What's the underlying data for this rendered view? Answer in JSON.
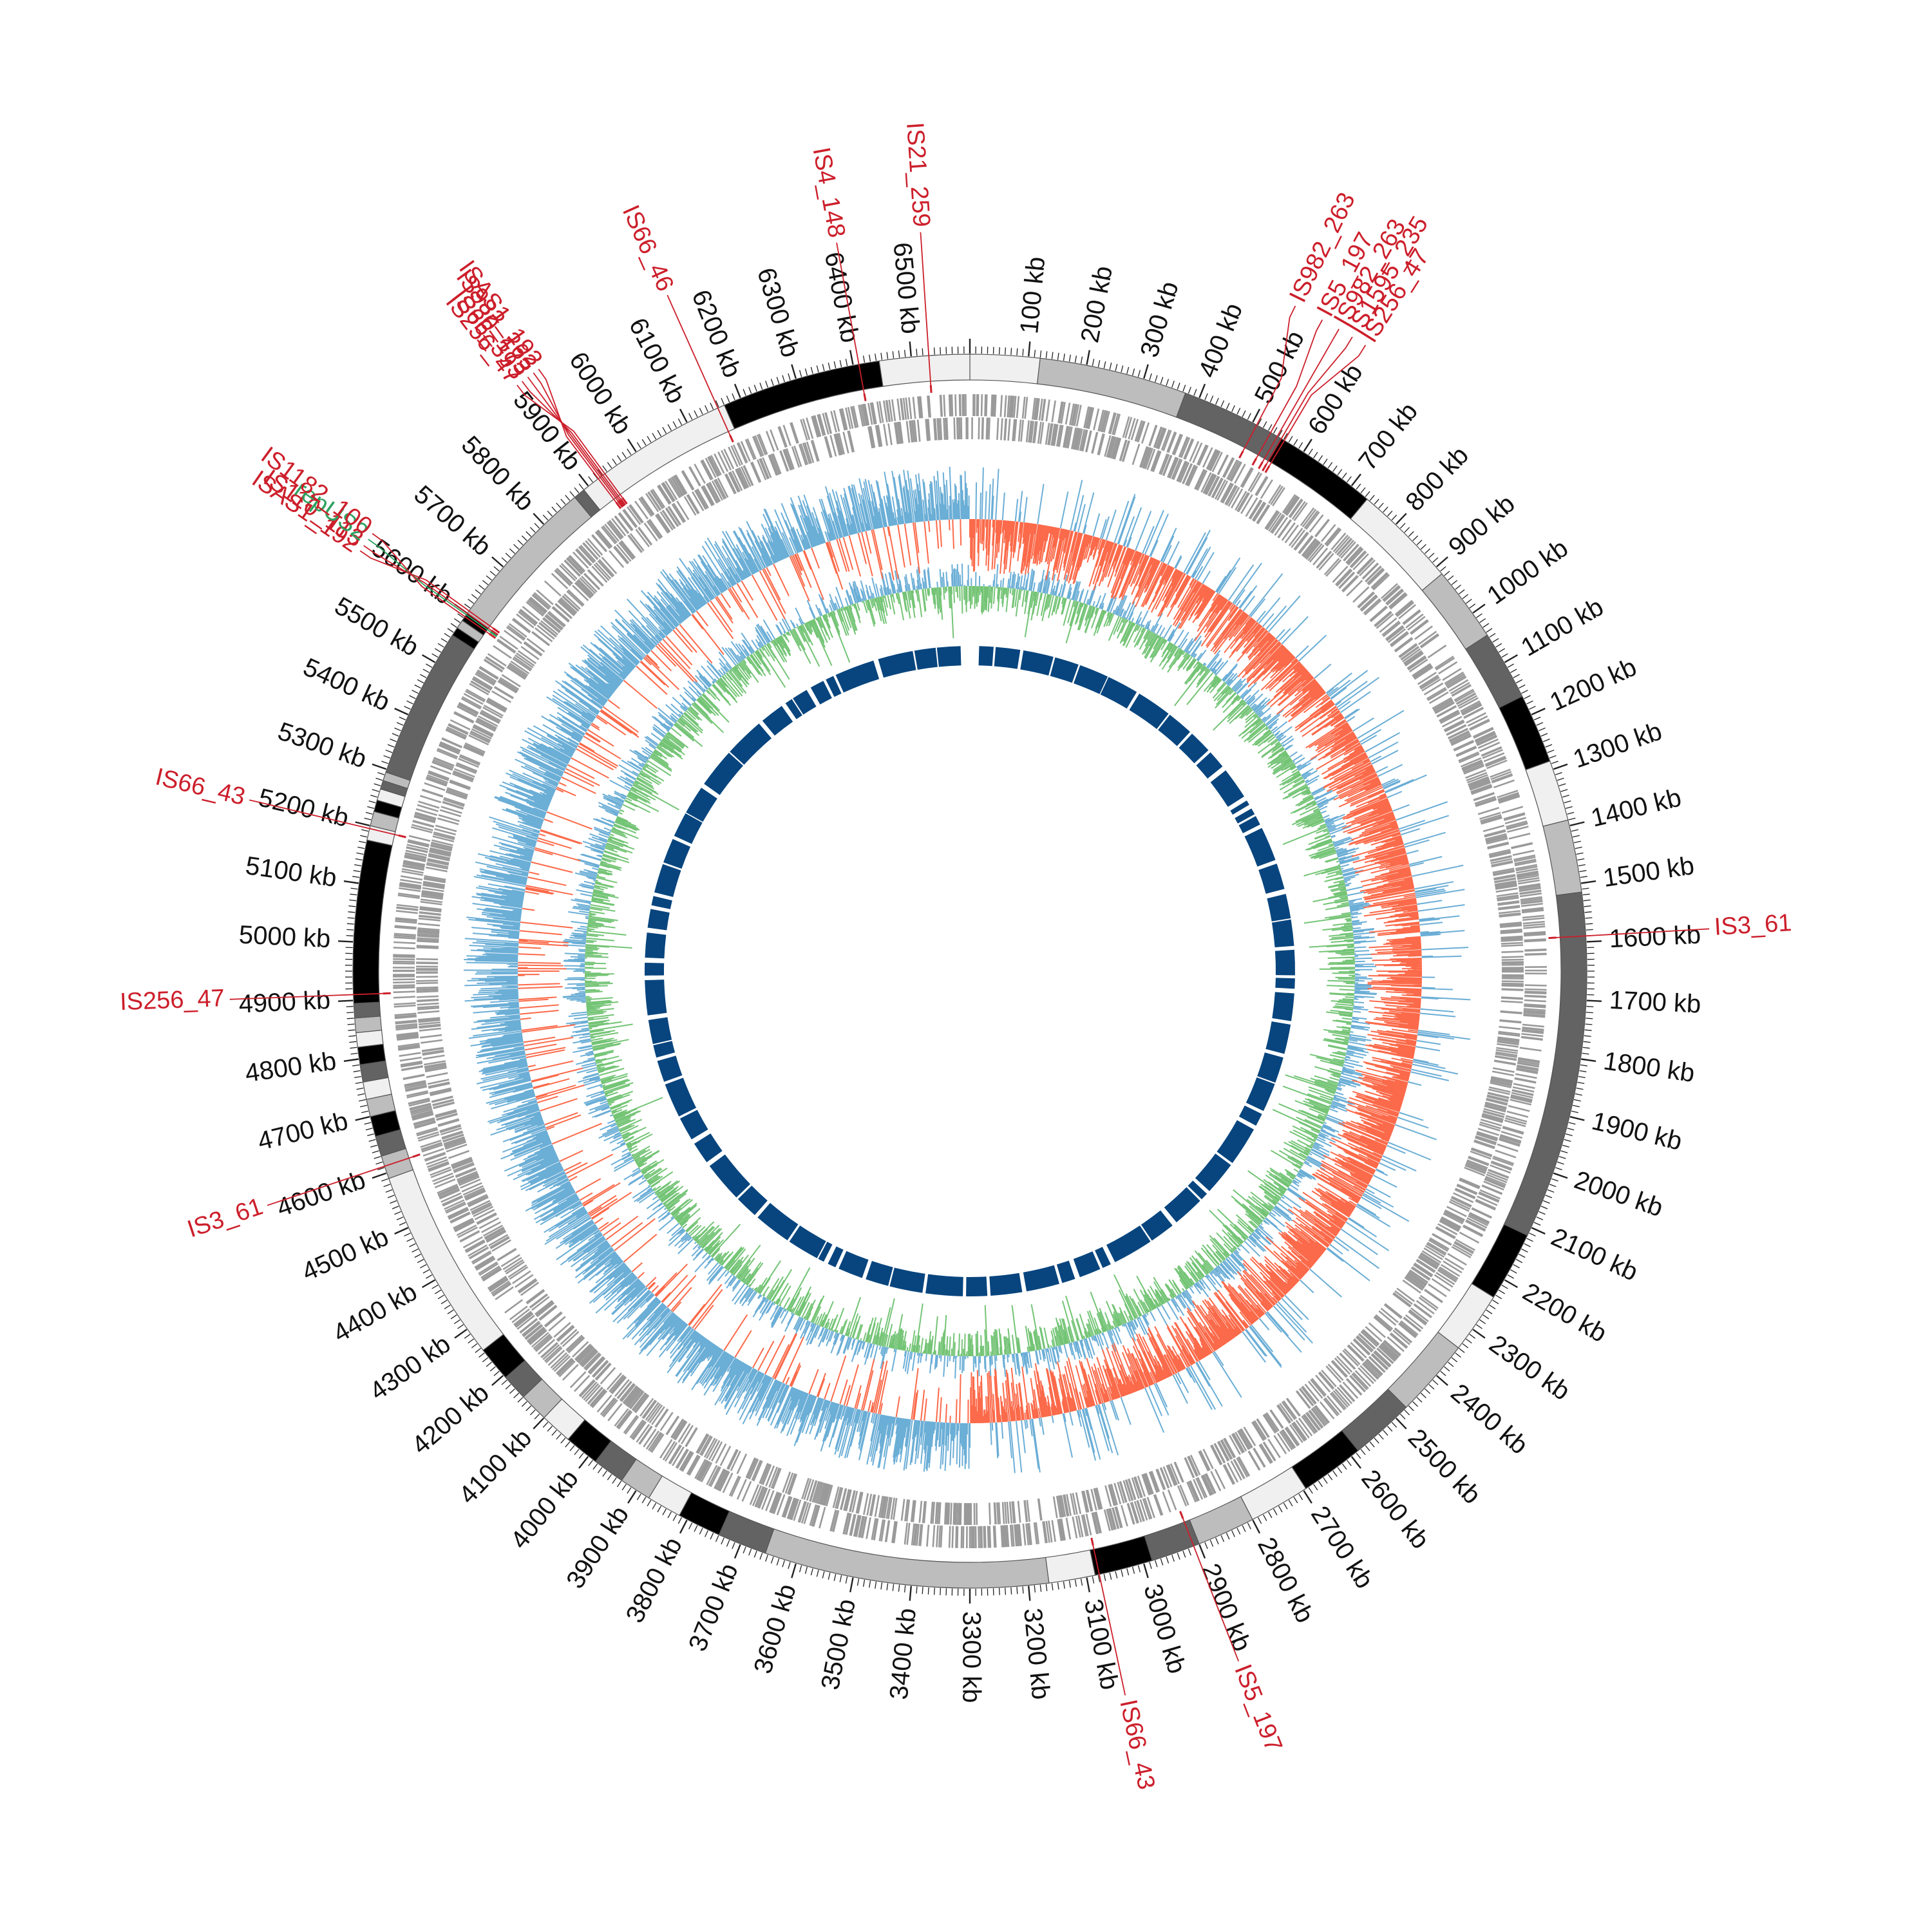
{
  "genome": {
    "length_kb": 6600,
    "tick_unit": "kb",
    "major_tick_step_kb": 100,
    "minor_tick_step_kb": 10
  },
  "colors": {
    "contig_palette": [
      "#f0f0f0",
      "#bdbdbd",
      "#636363",
      "#000000"
    ],
    "cds": "#9a9a9a",
    "gc_skew_positive": "#6baed6",
    "gc_skew_negative": "#fb6a4a",
    "gc_content_above": "#6baed6",
    "gc_content_below": "#74c476",
    "inner_blocks": "#08457e",
    "insertion_sequence": "#cc1f2b",
    "replicon": "#2ca25f"
  },
  "contigs": [
    {
      "start": 0,
      "end": 120,
      "shade": 0
    },
    {
      "start": 120,
      "end": 375,
      "shade": 1
    },
    {
      "start": 375,
      "end": 555,
      "shade": 2
    },
    {
      "start": 555,
      "end": 735,
      "shade": 3
    },
    {
      "start": 735,
      "end": 915,
      "shade": 0
    },
    {
      "start": 915,
      "end": 1045,
      "shade": 1
    },
    {
      "start": 1045,
      "end": 1165,
      "shade": 2
    },
    {
      "start": 1165,
      "end": 1285,
      "shade": 3
    },
    {
      "start": 1285,
      "end": 1390,
      "shade": 0
    },
    {
      "start": 1390,
      "end": 1515,
      "shade": 1
    },
    {
      "start": 1515,
      "end": 2115,
      "shade": 2
    },
    {
      "start": 2115,
      "end": 2235,
      "shade": 3
    },
    {
      "start": 2235,
      "end": 2340,
      "shade": 0
    },
    {
      "start": 2340,
      "end": 2475,
      "shade": 1
    },
    {
      "start": 2475,
      "end": 2585,
      "shade": 2
    },
    {
      "start": 2585,
      "end": 2695,
      "shade": 3
    },
    {
      "start": 2695,
      "end": 2800,
      "shade": 0
    },
    {
      "start": 2800,
      "end": 2900,
      "shade": 1
    },
    {
      "start": 2900,
      "end": 2985,
      "shade": 2
    },
    {
      "start": 2985,
      "end": 3085,
      "shade": 3
    },
    {
      "start": 3085,
      "end": 3165,
      "shade": 0
    },
    {
      "start": 3165,
      "end": 3655,
      "shade": 1
    },
    {
      "start": 3655,
      "end": 3740,
      "shade": 2
    },
    {
      "start": 3740,
      "end": 3815,
      "shade": 3
    },
    {
      "start": 3815,
      "end": 3875,
      "shade": 0
    },
    {
      "start": 3875,
      "end": 3930,
      "shade": 1
    },
    {
      "start": 3930,
      "end": 3985,
      "shade": 2
    },
    {
      "start": 3985,
      "end": 4045,
      "shade": 3
    },
    {
      "start": 4045,
      "end": 4100,
      "shade": 0
    },
    {
      "start": 4100,
      "end": 4150,
      "shade": 1
    },
    {
      "start": 4150,
      "end": 4195,
      "shade": 2
    },
    {
      "start": 4195,
      "end": 4255,
      "shade": 3
    },
    {
      "start": 4255,
      "end": 4590,
      "shade": 0
    },
    {
      "start": 4590,
      "end": 4630,
      "shade": 1
    },
    {
      "start": 4630,
      "end": 4665,
      "shade": 2
    },
    {
      "start": 4665,
      "end": 4700,
      "shade": 3
    },
    {
      "start": 4700,
      "end": 4730,
      "shade": 1
    },
    {
      "start": 4730,
      "end": 4760,
      "shade": 0
    },
    {
      "start": 4760,
      "end": 4790,
      "shade": 2
    },
    {
      "start": 4790,
      "end": 4820,
      "shade": 3
    },
    {
      "start": 4820,
      "end": 4845,
      "shade": 0
    },
    {
      "start": 4845,
      "end": 4870,
      "shade": 1
    },
    {
      "start": 4870,
      "end": 4895,
      "shade": 2
    },
    {
      "start": 4895,
      "end": 5175,
      "shade": 3
    },
    {
      "start": 5175,
      "end": 5200,
      "shade": 0
    },
    {
      "start": 5200,
      "end": 5225,
      "shade": 1
    },
    {
      "start": 5225,
      "end": 5245,
      "shade": 3
    },
    {
      "start": 5245,
      "end": 5265,
      "shade": 0
    },
    {
      "start": 5265,
      "end": 5280,
      "shade": 2
    },
    {
      "start": 5280,
      "end": 5295,
      "shade": 1
    },
    {
      "start": 5295,
      "end": 5555,
      "shade": 2
    },
    {
      "start": 5555,
      "end": 5570,
      "shade": 3
    },
    {
      "start": 5570,
      "end": 5585,
      "shade": 1
    },
    {
      "start": 5585,
      "end": 5600,
      "shade": 3
    },
    {
      "start": 5600,
      "end": 5870,
      "shade": 1
    },
    {
      "start": 5870,
      "end": 5890,
      "shade": 2
    },
    {
      "start": 5890,
      "end": 6170,
      "shade": 0
    },
    {
      "start": 6170,
      "end": 6445,
      "shade": 3
    },
    {
      "start": 6445,
      "end": 6600,
      "shade": 0
    }
  ],
  "features": [
    {
      "label": "IS21_259",
      "pos": 6530,
      "type": "insertion_sequence"
    },
    {
      "label": "IS4_148",
      "pos": 6410,
      "type": "insertion_sequence"
    },
    {
      "label": "IS66_46",
      "pos": 6158,
      "type": "insertion_sequence"
    },
    {
      "label": "IS256_47",
      "pos": 5935,
      "type": "insertion_sequence"
    },
    {
      "label": "IS66_393",
      "pos": 5931,
      "type": "insertion_sequence"
    },
    {
      "label": "IS30_173",
      "pos": 5928,
      "type": "insertion_sequence"
    },
    {
      "label": "IS982_263",
      "pos": 5925,
      "type": "insertion_sequence"
    },
    {
      "label": "ISAS1_192",
      "pos": 5921,
      "type": "insertion_sequence"
    },
    {
      "label": "ISAS1_192",
      "pos": 5605,
      "type": "insertion_sequence"
    },
    {
      "label": "IS110_113",
      "pos": 5600,
      "type": "insertion_sequence"
    },
    {
      "label": "repUS2",
      "pos": 5597,
      "type": "replicon"
    },
    {
      "label": "IS1182_100",
      "pos": 5593,
      "type": "insertion_sequence"
    },
    {
      "label": "IS66_43",
      "pos": 5195,
      "type": "insertion_sequence"
    },
    {
      "label": "IS256_47",
      "pos": 4910,
      "type": "insertion_sequence"
    },
    {
      "label": "IS3_61",
      "pos": 4612,
      "type": "insertion_sequence"
    },
    {
      "label": "IS982_263",
      "pos": 508,
      "type": "insertion_sequence"
    },
    {
      "label": "IS5_197",
      "pos": 535,
      "type": "insertion_sequence"
    },
    {
      "label": "IS982_263",
      "pos": 548,
      "type": "insertion_sequence"
    },
    {
      "label": "IS1595_235",
      "pos": 556,
      "type": "insertion_sequence"
    },
    {
      "label": "IS256_47",
      "pos": 562,
      "type": "insertion_sequence"
    },
    {
      "label": "IS3_61",
      "pos": 1590,
      "type": "insertion_sequence"
    },
    {
      "label": "IS5_197",
      "pos": 2910,
      "type": "insertion_sequence"
    },
    {
      "label": "IS66_43",
      "pos": 3078,
      "type": "insertion_sequence"
    }
  ]
}
